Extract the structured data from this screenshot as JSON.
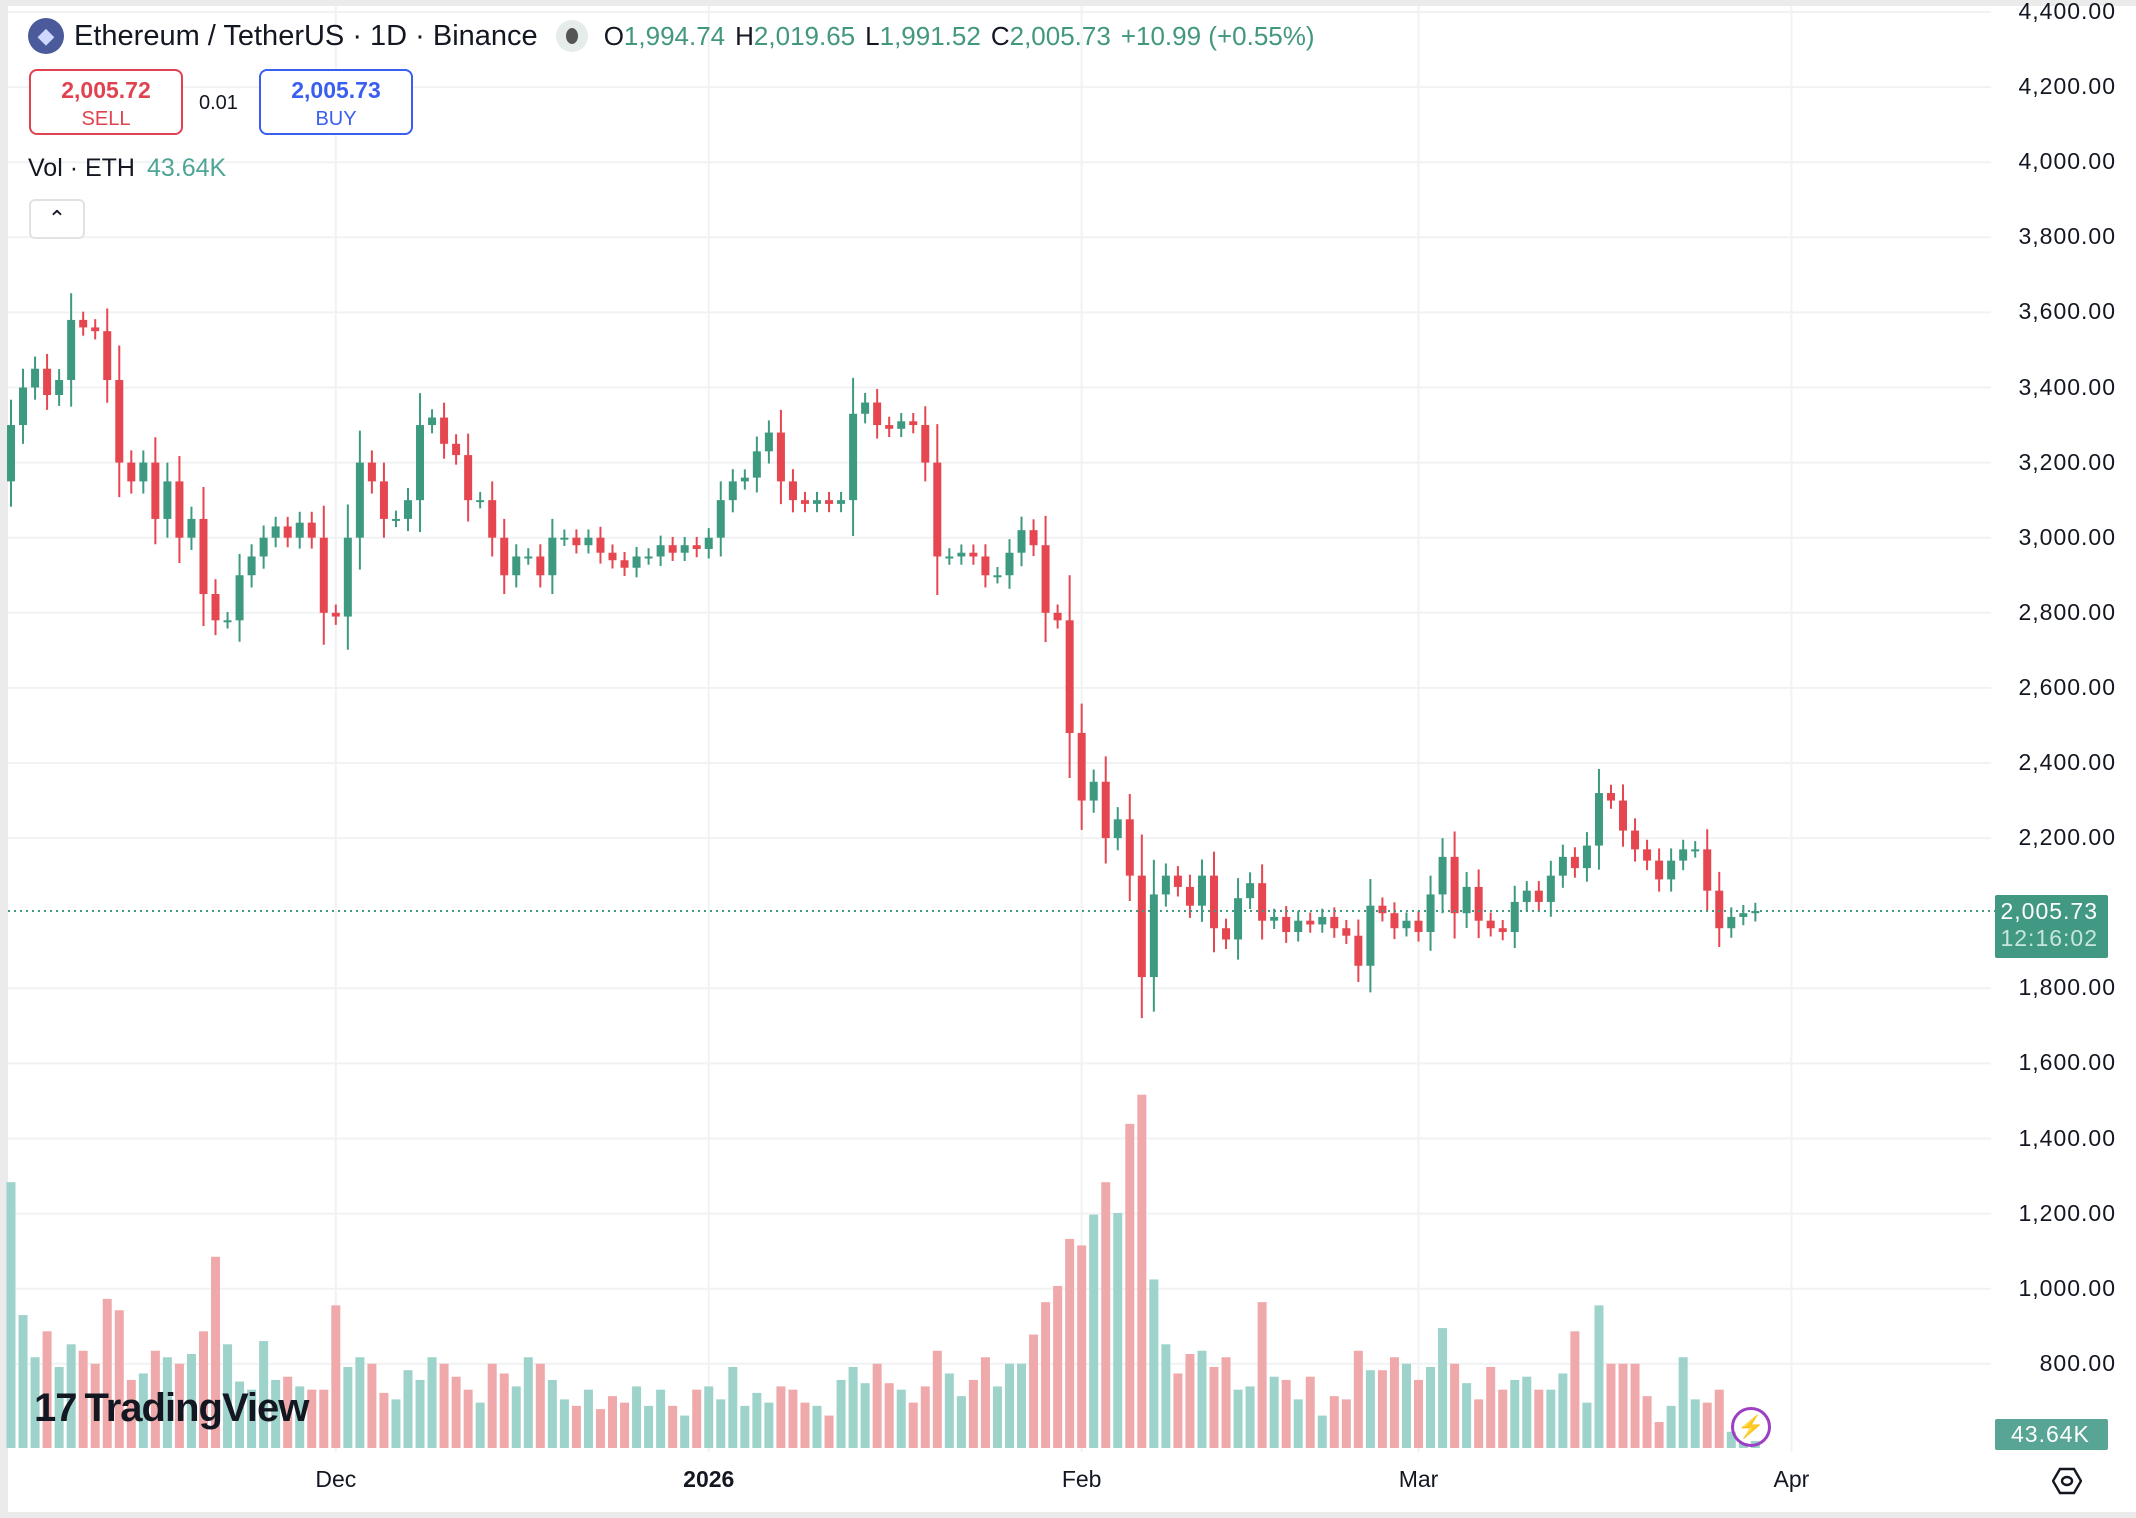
{
  "header": {
    "symbol_title": "Ethereum / TetherUS · 1D · Binance",
    "open_label": "O",
    "open": "1,994.74",
    "high_label": "H",
    "high": "2,019.65",
    "low_label": "L",
    "low": "1,991.52",
    "close_label": "C",
    "close": "2,005.73",
    "change": "+10.99 (+0.55%)"
  },
  "trade": {
    "sell_price": "2,005.72",
    "sell_label": "SELL",
    "spread": "0.01",
    "buy_price": "2,005.73",
    "buy_label": "BUY"
  },
  "volume_legend": {
    "label": "Vol · ETH",
    "value": "43.64K"
  },
  "price_tag": {
    "price": "2,005.73",
    "countdown": "12:16:02"
  },
  "volume_tag": "43.64K",
  "logo_text": "TradingView",
  "colors": {
    "up": "#3d9a80",
    "down": "#e5464f",
    "up_volume": "#9dd3ca",
    "down_volume": "#f0a9ab",
    "grid": "#f1f2f4"
  },
  "chart_data": {
    "type": "candlestick",
    "interval": "1D",
    "start_date": "2025-11-04",
    "first_open": 3150,
    "close": [
      3300,
      3400,
      3450,
      3380,
      3420,
      3580,
      3560,
      3550,
      3420,
      3200,
      3150,
      3200,
      3050,
      3150,
      3000,
      3050,
      2850,
      2780,
      2780,
      2900,
      2950,
      3000,
      3030,
      3000,
      3040,
      3000,
      2800,
      2790,
      3000,
      3200,
      3150,
      3050,
      3050,
      3100,
      3300,
      3320,
      3250,
      3220,
      3100,
      3100,
      3000,
      2900,
      2950,
      2950,
      2900,
      3000,
      3000,
      2980,
      3000,
      2960,
      2940,
      2920,
      2950,
      2950,
      2980,
      2960,
      2980,
      2970,
      3000,
      3100,
      3150,
      3160,
      3230,
      3280,
      3150,
      3100,
      3090,
      3100,
      3090,
      3100,
      3330,
      3360,
      3300,
      3290,
      3310,
      3300,
      3200,
      2950,
      2950,
      2960,
      2950,
      2900,
      2900,
      2960,
      3020,
      2980,
      2800,
      2780,
      2480,
      2300,
      2350,
      2200,
      2250,
      2100,
      1830,
      2050,
      2100,
      2070,
      2020,
      2100,
      1960,
      1930,
      2040,
      2080,
      1980,
      1990,
      1950,
      1980,
      1970,
      1990,
      1960,
      1940,
      1860,
      2020,
      2000,
      1960,
      1980,
      1950,
      2050,
      2150,
      2000,
      2070,
      1980,
      1960,
      1950,
      2030,
      2060,
      2030,
      2100,
      2150,
      2120,
      2180,
      2320,
      2300,
      2220,
      2170,
      2140,
      2090,
      2140,
      2170,
      2170,
      2060,
      1960,
      1990,
      2000,
      2005.73
    ],
    "volume_k": [
      1640,
      820,
      560,
      720,
      500,
      640,
      600,
      520,
      920,
      850,
      420,
      460,
      600,
      560,
      520,
      580,
      720,
      1180,
      640,
      410,
      360,
      660,
      420,
      440,
      380,
      360,
      360,
      880,
      500,
      560,
      520,
      340,
      300,
      480,
      420,
      560,
      520,
      440,
      360,
      280,
      520,
      460,
      380,
      560,
      520,
      420,
      300,
      260,
      360,
      240,
      320,
      280,
      380,
      260,
      360,
      260,
      200,
      360,
      380,
      300,
      500,
      260,
      340,
      280,
      380,
      360,
      280,
      260,
      200,
      420,
      500,
      400,
      520,
      400,
      360,
      280,
      380,
      600,
      460,
      320,
      420,
      560,
      380,
      520,
      520,
      700,
      900,
      1000,
      1290,
      1250,
      1440,
      1640,
      1450,
      2000,
      2180,
      1040,
      640,
      460,
      580,
      600,
      500,
      560,
      360,
      380,
      900,
      440,
      420,
      300,
      440,
      200,
      320,
      300,
      600,
      480,
      480,
      560,
      520,
      420,
      500,
      740,
      520,
      400,
      300,
      500,
      360,
      420,
      440,
      360,
      360,
      460,
      720,
      280,
      880,
      520,
      520,
      520,
      320,
      160,
      260,
      560,
      300,
      280,
      360,
      100,
      30,
      43.64
    ],
    "y_ticks": [
      "4,400.00",
      "4,200.00",
      "4,000.00",
      "3,800.00",
      "3,600.00",
      "3,400.00",
      "3,200.00",
      "3,000.00",
      "2,800.00",
      "2,600.00",
      "2,400.00",
      "2,200.00",
      "1,800.00",
      "1,600.00",
      "1,400.00",
      "1,200.00",
      "1,000.00",
      "800.00"
    ],
    "y_tick_values": [
      4400,
      4200,
      4000,
      3800,
      3600,
      3400,
      3200,
      3000,
      2800,
      2600,
      2400,
      2200,
      1800,
      1600,
      1400,
      1200,
      1000,
      800
    ],
    "x_ticks": [
      {
        "label": "Dec",
        "date": "2025-12-01"
      },
      {
        "label": "2026",
        "date": "2026-01-01"
      },
      {
        "label": "Feb",
        "date": "2026-02-01"
      },
      {
        "label": "Mar",
        "date": "2026-03-01"
      },
      {
        "label": "Apr",
        "date": "2026-04-01"
      }
    ],
    "last_price": 2005.73,
    "grid": true
  }
}
